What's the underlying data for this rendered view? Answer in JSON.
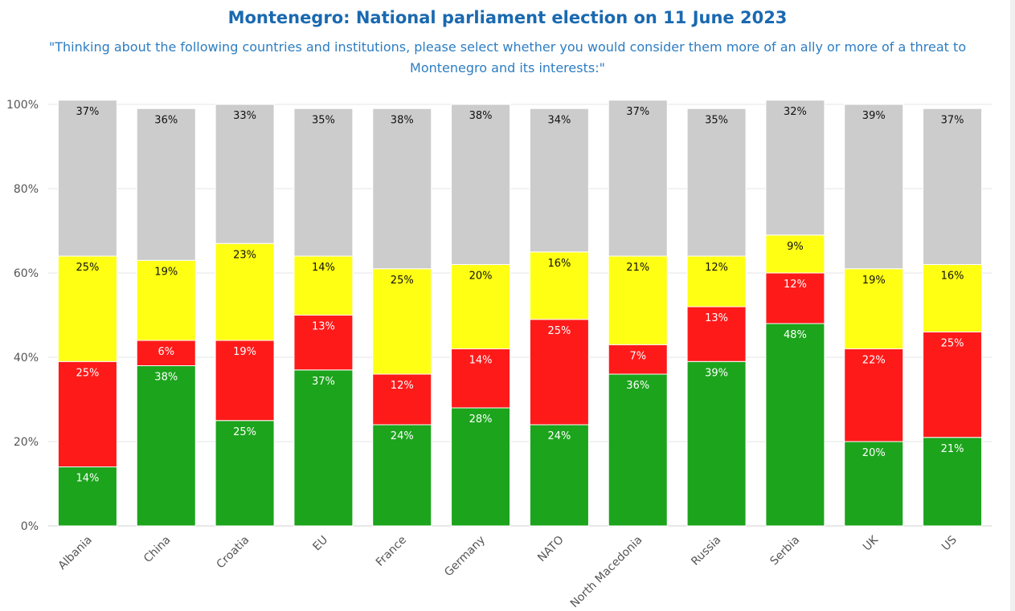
{
  "title": "Montenegro: National parliament election on 11 June 2023",
  "subtitle": "\"Thinking about the following countries and institutions, please select whether you would consider them more of an ally or more of a threat to Montenegro and its interests:\"",
  "chart_data": {
    "type": "bar",
    "stacked": true,
    "categories": [
      "Albania",
      "China",
      "Croatia",
      "EU",
      "France",
      "Germany",
      "NATO",
      "North Macedonia",
      "Russia",
      "Serbia",
      "UK",
      "US"
    ],
    "series": [
      {
        "color": "#1ca41c",
        "values": [
          14,
          38,
          25,
          37,
          24,
          28,
          24,
          36,
          39,
          48,
          20,
          21
        ]
      },
      {
        "color": "#ff1a1a",
        "values": [
          25,
          6,
          19,
          13,
          12,
          14,
          25,
          7,
          13,
          12,
          22,
          25
        ]
      },
      {
        "color": "#ffff14",
        "values": [
          25,
          19,
          23,
          14,
          25,
          20,
          16,
          21,
          12,
          9,
          19,
          16
        ]
      },
      {
        "color": "#cccccc",
        "values": [
          37,
          36,
          33,
          35,
          38,
          38,
          34,
          37,
          35,
          32,
          39,
          37
        ]
      }
    ],
    "ylim": [
      0,
      100
    ],
    "yticks": [
      "0%",
      "20%",
      "40%",
      "60%",
      "80%",
      "100%"
    ],
    "grid": true
  }
}
